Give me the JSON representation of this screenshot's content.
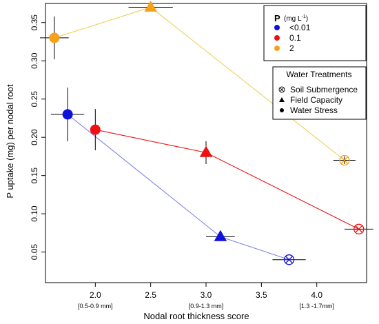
{
  "chart_data": {
    "type": "scatter",
    "xlabel": "Nodal root thickness score",
    "ylabel": "P uptake (mg) per nodal root",
    "xlim": [
      1.55,
      4.45
    ],
    "ylim": [
      0.01,
      0.375
    ],
    "x_ticks": [
      2.0,
      2.5,
      3.0,
      3.5,
      4.0
    ],
    "x_tick_labels": [
      "2.0",
      "2.5",
      "3.0",
      "3.5",
      "4.0"
    ],
    "y_ticks": [
      0.05,
      0.1,
      0.15,
      0.2,
      0.25,
      0.3,
      0.35
    ],
    "y_tick_labels": [
      "0.05",
      "0.10",
      "0.15",
      "0.20",
      "0.25",
      "0.30",
      "0.35"
    ],
    "x_sublabels": [
      {
        "x": 2.0,
        "text": "[0.5-0.9 mm]"
      },
      {
        "x": 3.0,
        "text": "[0.9-1.3 mm]"
      },
      {
        "x": 4.0,
        "text": "[1.3 -1.7mm]"
      }
    ],
    "grid": false,
    "legend_p": {
      "title_main": "P",
      "title_unit": "(mg L",
      "title_sup": "-1",
      "title_close": ")",
      "placement": "top-right",
      "entries": [
        {
          "label": "<0.01",
          "color": "#1010dd"
        },
        {
          "label": "0.1",
          "color": "#ee1111"
        },
        {
          "label": "2",
          "color": "#f5a21a"
        }
      ]
    },
    "legend_water": {
      "title": "Water Treatments",
      "placement": "right",
      "entries": [
        {
          "label": "Soil Submergence",
          "marker": "circle-x"
        },
        {
          "label": "Field Capacity",
          "marker": "triangle"
        },
        {
          "label": "Water Stress",
          "marker": "circle"
        }
      ]
    },
    "series": [
      {
        "name": "<0.01",
        "color": "#1010dd",
        "line_color": "#7f83e6",
        "points": [
          {
            "x": 1.75,
            "y": 0.23,
            "x_err": 0.15,
            "y_err": 0.035,
            "marker": "circle"
          },
          {
            "x": 3.13,
            "y": 0.07,
            "x_err": 0.13,
            "y_err": 0.0,
            "marker": "triangle"
          },
          {
            "x": 3.75,
            "y": 0.04,
            "x_err": 0.15,
            "y_err": 0.0,
            "marker": "circle-x"
          }
        ]
      },
      {
        "name": "0.1",
        "color": "#ee1111",
        "line_color": "#ee1111",
        "points": [
          {
            "x": 2.0,
            "y": 0.21,
            "x_err": 0.0,
            "y_err": 0.027,
            "marker": "circle"
          },
          {
            "x": 3.0,
            "y": 0.18,
            "x_err": 0.0,
            "y_err": 0.015,
            "marker": "triangle"
          },
          {
            "x": 4.38,
            "y": 0.08,
            "x_err": 0.13,
            "y_err": 0.0,
            "marker": "circle-x"
          }
        ]
      },
      {
        "name": "2",
        "color": "#f5a21a",
        "line_color": "#f2cd57",
        "points": [
          {
            "x": 1.63,
            "y": 0.33,
            "x_err": 0.13,
            "y_err": 0.028,
            "marker": "circle"
          },
          {
            "x": 2.5,
            "y": 0.37,
            "x_err": 0.2,
            "y_err": 0.0,
            "marker": "triangle"
          },
          {
            "x": 4.25,
            "y": 0.17,
            "x_err": 0.1,
            "y_err": 0.005,
            "marker": "circle-x"
          }
        ]
      }
    ]
  }
}
